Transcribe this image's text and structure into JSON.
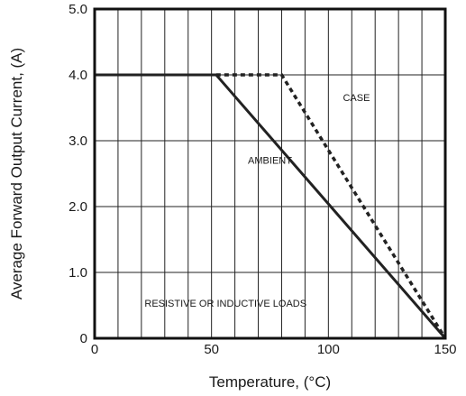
{
  "chart_data": {
    "type": "line",
    "xlabel": "Temperature, (°C)",
    "ylabel": "Average Forward Output Current, (A)",
    "xlim": [
      0,
      150
    ],
    "ylim": [
      0,
      5.0
    ],
    "x_ticks": [
      {
        "value": 0,
        "label": "0"
      },
      {
        "value": 50,
        "label": "50"
      },
      {
        "value": 100,
        "label": "100"
      },
      {
        "value": 150,
        "label": "150"
      }
    ],
    "y_ticks": [
      {
        "value": 0,
        "label": "0"
      },
      {
        "value": 1,
        "label": "1.0"
      },
      {
        "value": 2,
        "label": "2.0"
      },
      {
        "value": 3,
        "label": "3.0"
      },
      {
        "value": 4,
        "label": "4.0"
      },
      {
        "value": 5,
        "label": "5.0"
      }
    ],
    "x_grid_step": 10,
    "y_grid_step": 1,
    "grid": true,
    "series": [
      {
        "name": "AMBIENT",
        "style": "solid",
        "color": "#222222",
        "x": [
          0,
          52,
          150
        ],
        "y": [
          4.0,
          4.0,
          0
        ]
      },
      {
        "name": "CASE",
        "style": "dashed",
        "color": "#222222",
        "x": [
          52,
          80,
          150
        ],
        "y": [
          4.0,
          4.0,
          0
        ]
      }
    ],
    "annotations": [
      {
        "text": "AMBIENT",
        "x": 75,
        "y": 2.65
      },
      {
        "text": "CASE",
        "x": 112,
        "y": 3.6
      },
      {
        "text": "RESISTIVE OR INDUCTIVE LOADS",
        "x": 56,
        "y": 0.48
      }
    ]
  }
}
